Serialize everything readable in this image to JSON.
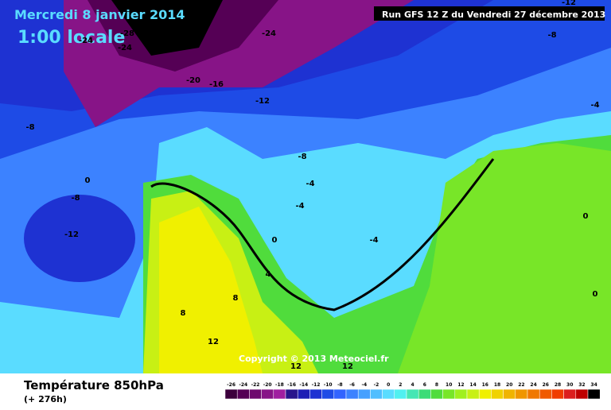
{
  "header": {
    "title": "Mercredi 8 janvier 2014",
    "time": "1:00 locale",
    "run": "Run GFS 12 Z du Vendredi 27 décembre 2013"
  },
  "map": {
    "copyright": "Copyright © 2013 Meteociel.fr",
    "contour_labels": [
      "-28",
      "-24",
      "-32",
      "-24",
      "-8",
      "-12",
      "-20",
      "-16",
      "-12",
      "-4",
      "-8",
      "-8",
      "0",
      "-8",
      "-4",
      "-4",
      "-4",
      "-12",
      "0",
      "0",
      "4",
      "8",
      "8",
      "12",
      "12",
      "12",
      "0",
      "-24"
    ]
  },
  "footer": {
    "title": "Température 850hPa",
    "lead": "(+ 276h)"
  },
  "legend": {
    "values": [
      -26,
      -24,
      -22,
      -20,
      -18,
      -16,
      -14,
      -12,
      -10,
      -8,
      -6,
      -4,
      -2,
      0,
      2,
      4,
      6,
      8,
      10,
      12,
      14,
      16,
      18,
      20,
      22,
      24,
      26,
      28,
      30,
      32,
      34
    ],
    "colors": [
      "#3c003c",
      "#550055",
      "#6e0a6e",
      "#871487",
      "#a01ea0",
      "#28148c",
      "#1e1eb4",
      "#1e32d2",
      "#1e4be6",
      "#3264ff",
      "#3c82ff",
      "#46a0ff",
      "#50beff",
      "#5adcff",
      "#50f0f0",
      "#46e6b4",
      "#3cdc78",
      "#50dc3c",
      "#78e628",
      "#a0f01e",
      "#c8f014",
      "#f0f000",
      "#f0d200",
      "#f0b400",
      "#f09600",
      "#f07800",
      "#f05a00",
      "#f03c00",
      "#dc1e1e",
      "#be0000",
      "#000000"
    ]
  }
}
